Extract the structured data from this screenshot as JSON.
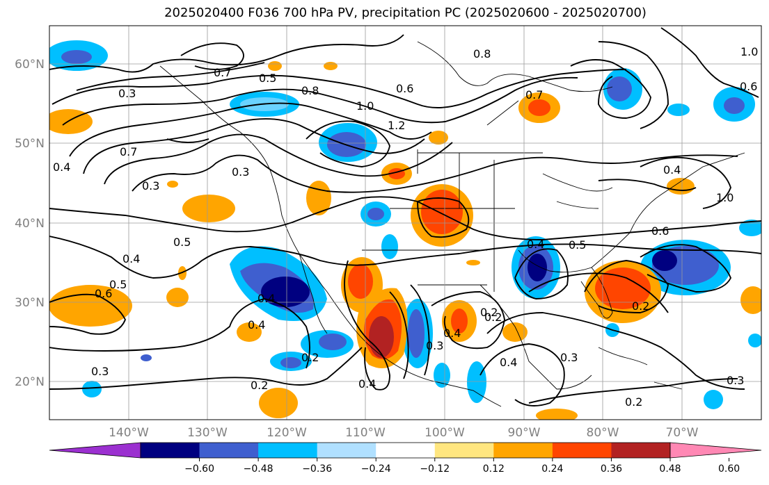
{
  "title": "2025020400 F036 700 hPa PV, precipitation PC (2025020600 - 2025020700)",
  "lat_labels": [
    "60°N",
    "50°N",
    "40°N",
    "30°N",
    "20°N"
  ],
  "lon_labels": [
    "140°W",
    "130°W",
    "120°W",
    "110°W",
    "100°W",
    "90°W",
    "80°W",
    "70°W"
  ],
  "colorbar": {
    "colors": [
      "#9b30d0",
      "#000080",
      "#3f5fcf",
      "#00bfff",
      "#b0e0ff",
      "#ffffff",
      "#ffe680",
      "#ffa500",
      "#ff4500",
      "#b22222",
      "#ff88b4"
    ],
    "tick_labels": [
      "−0.60",
      "−0.48",
      "−0.36",
      "−0.24",
      "−0.12",
      "0.12",
      "0.24",
      "0.36",
      "0.48",
      "0.60"
    ]
  },
  "contour_labels": [
    "0.3",
    "0.7",
    "0.5",
    "0.8",
    "0.6",
    "1.0",
    "1.2",
    "0.7",
    "0.3",
    "0.3",
    "0.4",
    "0.5",
    "0.4",
    "0.6",
    "0.5",
    "0.4",
    "0.2",
    "0.4",
    "0.3",
    "0.2",
    "0.4",
    "0.4",
    "0.2",
    "0.3",
    "0.5",
    "0.6",
    "0.2",
    "0.3",
    "0.2",
    "0.8",
    "0.7",
    "0.6",
    "1.0",
    "0.4",
    "0.2",
    "0.4",
    "0.3",
    "0.4",
    "1.0"
  ]
}
